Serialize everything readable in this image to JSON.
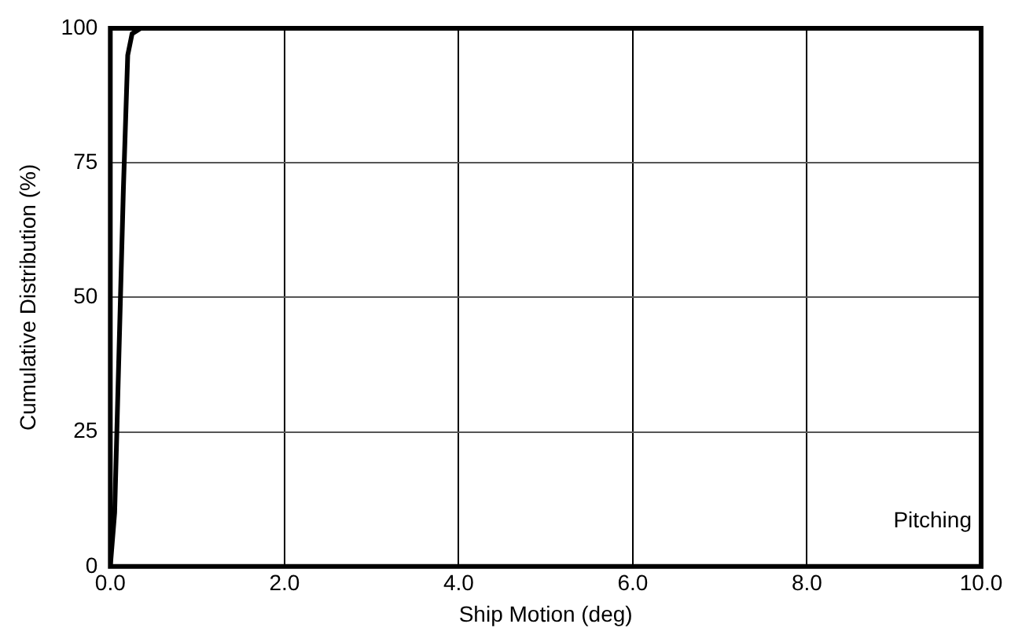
{
  "chart_data": {
    "type": "line",
    "xlabel": "Ship Motion (deg)",
    "ylabel": "Cumulative Distribution (%)",
    "annotations": [
      "Pitching"
    ],
    "x": [
      0,
      0.05,
      0.1,
      0.15,
      0.2,
      0.25,
      0.35,
      0.6
    ],
    "series": [
      {
        "color": "#000000",
        "values": [
          0,
          10,
          40,
          70,
          95,
          99,
          100,
          100
        ]
      }
    ],
    "xlim": [
      0,
      10
    ],
    "xticks": [
      {
        "value": 0,
        "label": "0.0"
      },
      {
        "value": 2,
        "label": "2.0"
      },
      {
        "value": 4,
        "label": "4.0"
      },
      {
        "value": 6,
        "label": "6.0"
      },
      {
        "value": 8,
        "label": "8.0"
      },
      {
        "value": 10,
        "label": "10.0"
      }
    ],
    "ylim": [
      0,
      100
    ],
    "yticks": [
      0,
      25,
      50,
      75,
      100
    ],
    "grid": true,
    "legend": false,
    "marker": "none",
    "line_style": "solid"
  }
}
